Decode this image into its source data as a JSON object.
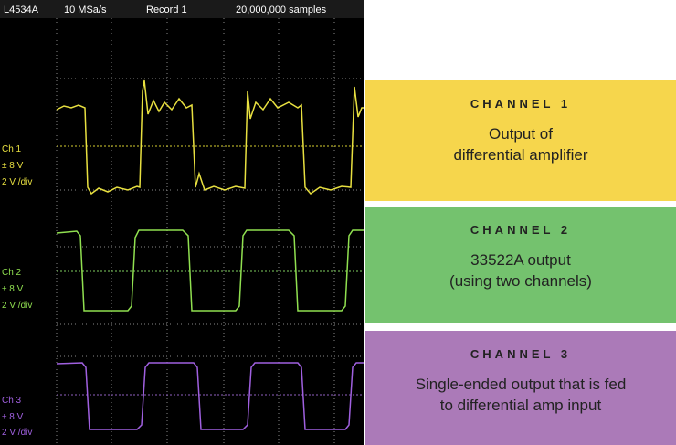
{
  "header": {
    "model": "L4534A",
    "rate": "10 MSa/s",
    "record": "Record 1",
    "samples": "20,000,000 samples"
  },
  "scope_labels": [
    {
      "channel": "Ch 1",
      "range": "± 8 V",
      "scale": "2 V /div"
    },
    {
      "channel": "Ch 2",
      "range": "± 8 V",
      "scale": "2 V /div"
    },
    {
      "channel": "Ch 3",
      "range": "± 8 V",
      "scale": "2 V /div"
    }
  ],
  "panels": [
    {
      "title": "CHANNEL 1",
      "lines": [
        "Output of",
        "differential amplifier"
      ]
    },
    {
      "title": "CHANNEL 2",
      "lines": [
        "33522A output",
        "(using two channels)"
      ]
    },
    {
      "title": "CHANNEL 3",
      "lines": [
        "Single-ended output that is fed",
        "to differential amp input"
      ]
    }
  ]
}
